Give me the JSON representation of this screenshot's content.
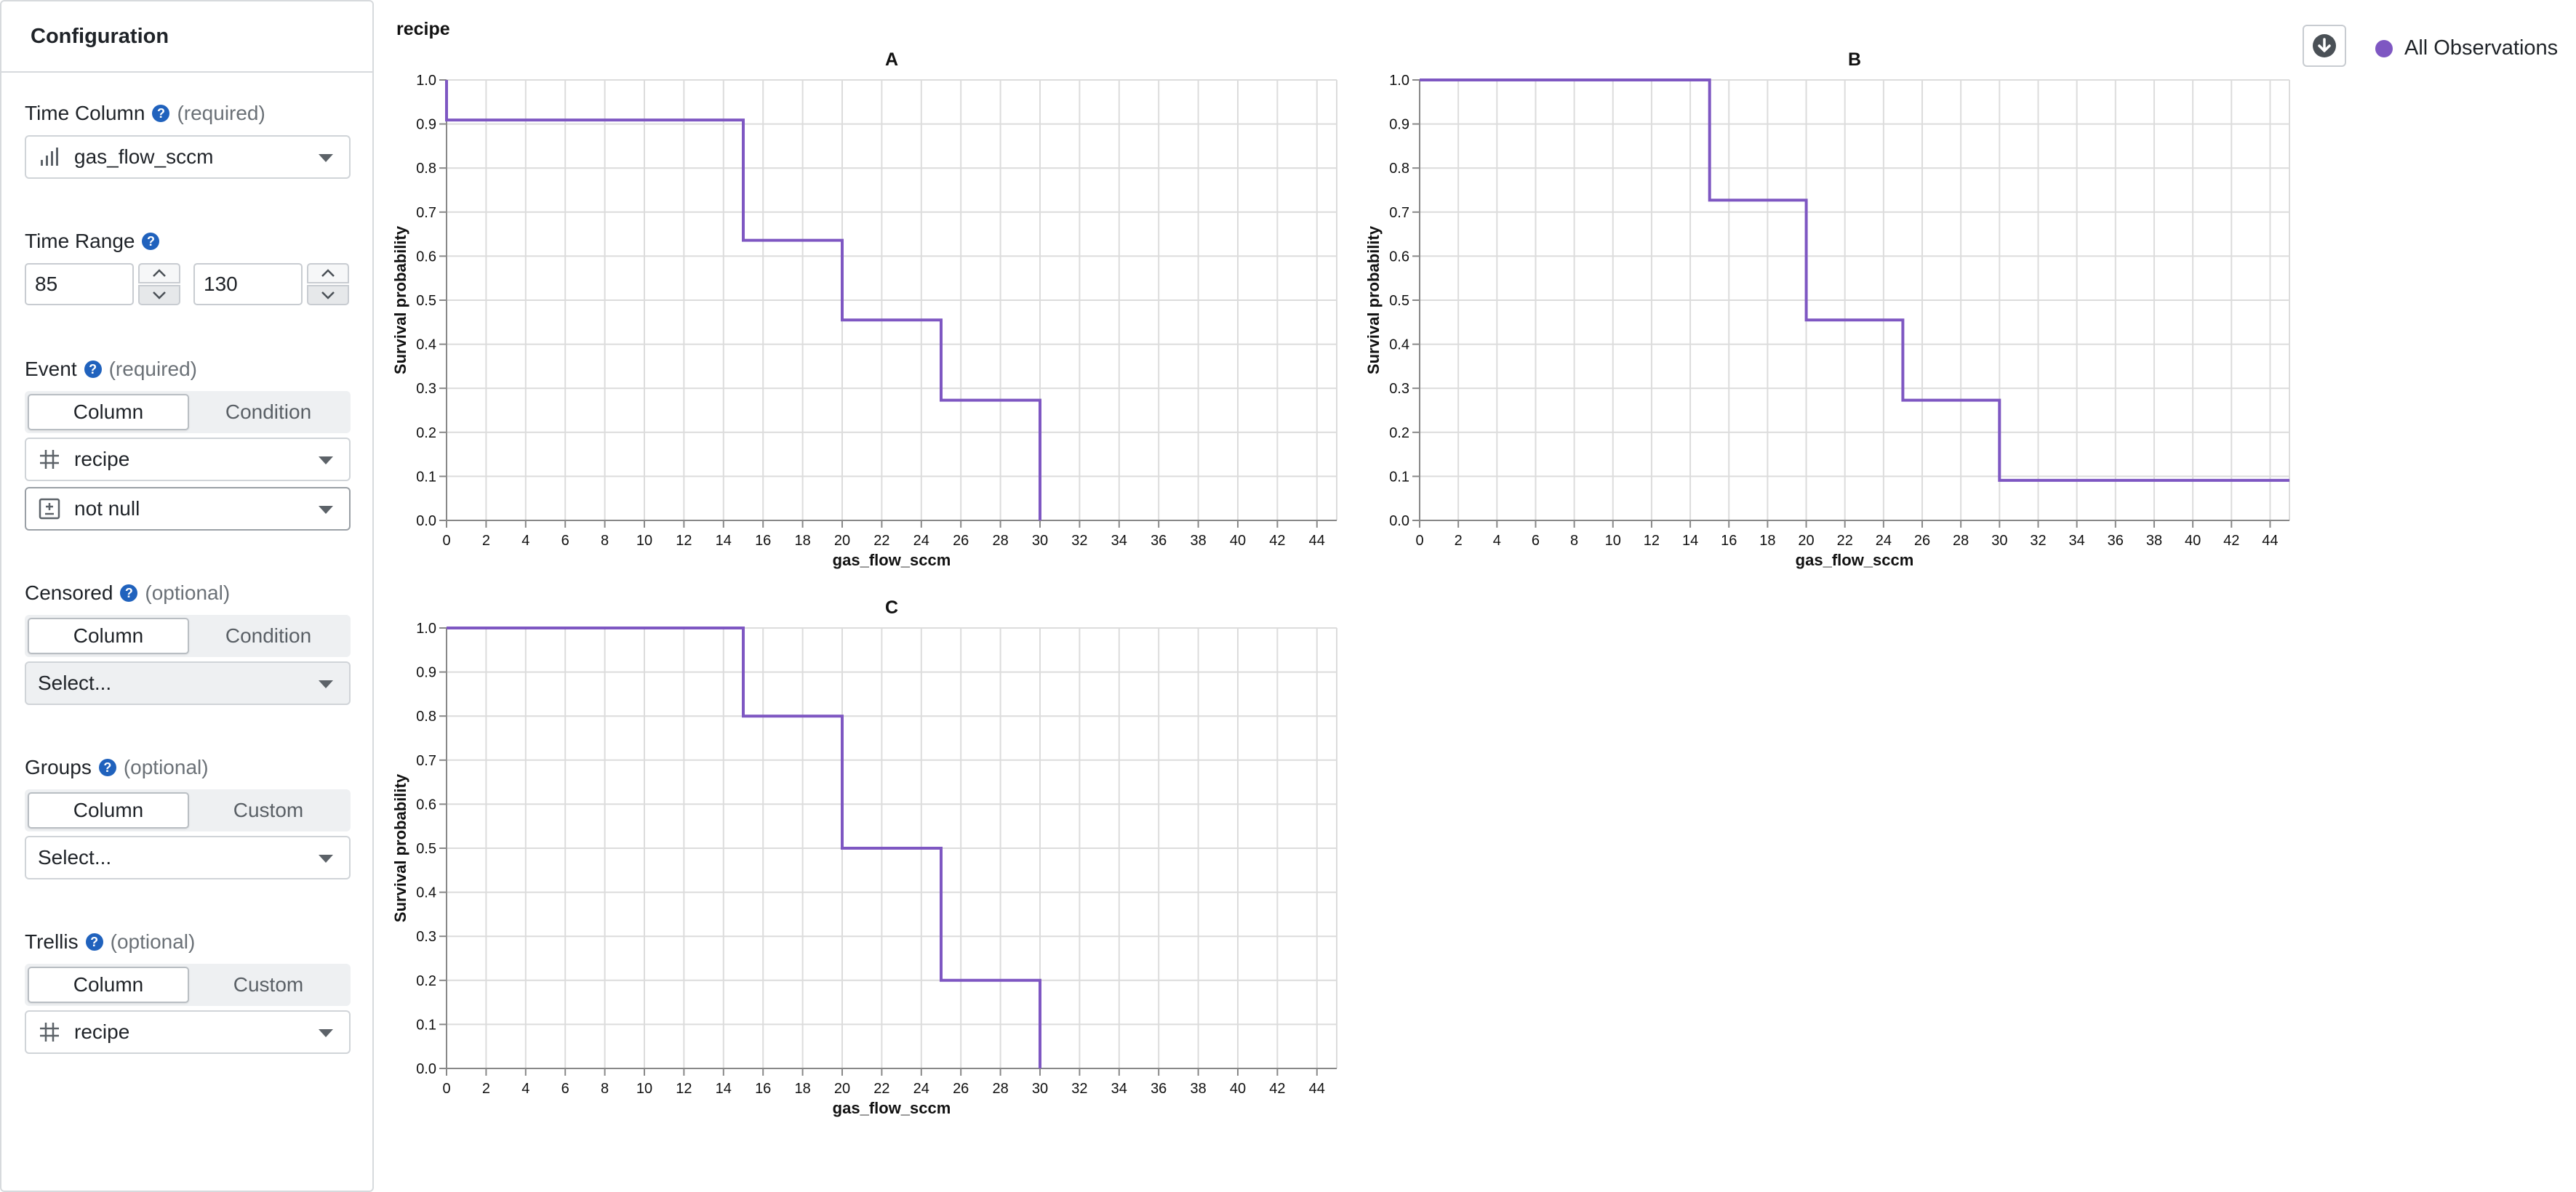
{
  "sidebar": {
    "title": "Configuration",
    "time_column": {
      "label": "Time Column",
      "qualifier": "(required)",
      "value": "gas_flow_sccm",
      "icon": "numeric-column-icon"
    },
    "time_range": {
      "label": "Time Range",
      "min": "85",
      "max": "130"
    },
    "event": {
      "label": "Event",
      "qualifier": "(required)",
      "tabs": [
        "Column",
        "Condition"
      ],
      "active_tab": "Column",
      "column_value": "recipe",
      "column_icon": "categorical-column-icon",
      "condition_value": "not null",
      "condition_icon": "not-null-icon"
    },
    "censored": {
      "label": "Censored",
      "qualifier": "(optional)",
      "tabs": [
        "Column",
        "Condition"
      ],
      "active_tab": "Column",
      "placeholder": "Select..."
    },
    "groups": {
      "label": "Groups",
      "qualifier": "(optional)",
      "tabs": [
        "Column",
        "Custom"
      ],
      "active_tab": "Column",
      "placeholder": "Select..."
    },
    "trellis": {
      "label": "Trellis",
      "qualifier": "(optional)",
      "tabs": [
        "Column",
        "Custom"
      ],
      "active_tab": "Column",
      "value": "recipe",
      "icon": "categorical-column-icon"
    }
  },
  "main": {
    "title": "recipe",
    "download_icon": "download-icon",
    "legend": [
      {
        "label": "All Observations",
        "color": "#7e57c2"
      }
    ]
  },
  "chart_data": [
    {
      "type": "line",
      "step": true,
      "title": "A",
      "xlabel": "gas_flow_sccm",
      "ylabel": "Survival probability",
      "xticks": [
        0,
        2,
        4,
        6,
        8,
        10,
        12,
        14,
        16,
        18,
        20,
        22,
        24,
        26,
        28,
        30,
        32,
        34,
        36,
        38,
        40,
        42,
        44
      ],
      "yticks": [
        0.0,
        0.1,
        0.2,
        0.3,
        0.4,
        0.5,
        0.6,
        0.7,
        0.8,
        0.9,
        1.0
      ],
      "xlim": [
        0,
        45
      ],
      "ylim": [
        0,
        1
      ],
      "grid": true,
      "series": [
        {
          "name": "All Observations",
          "color": "#7e57c2",
          "x": [
            0,
            0,
            15,
            15,
            20,
            20,
            25,
            25,
            30,
            30
          ],
          "y": [
            1.0,
            0.909,
            0.909,
            0.636,
            0.636,
            0.455,
            0.455,
            0.273,
            0.273,
            0.0
          ]
        }
      ]
    },
    {
      "type": "line",
      "step": true,
      "title": "B",
      "xlabel": "gas_flow_sccm",
      "ylabel": "Survival probability",
      "xticks": [
        0,
        2,
        4,
        6,
        8,
        10,
        12,
        14,
        16,
        18,
        20,
        22,
        24,
        26,
        28,
        30,
        32,
        34,
        36,
        38,
        40,
        42,
        44
      ],
      "yticks": [
        0.0,
        0.1,
        0.2,
        0.3,
        0.4,
        0.5,
        0.6,
        0.7,
        0.8,
        0.9,
        1.0
      ],
      "xlim": [
        0,
        45
      ],
      "ylim": [
        0,
        1
      ],
      "grid": true,
      "series": [
        {
          "name": "All Observations",
          "color": "#7e57c2",
          "x": [
            0,
            15,
            15,
            20,
            20,
            25,
            25,
            30,
            30,
            45
          ],
          "y": [
            1.0,
            1.0,
            0.727,
            0.727,
            0.455,
            0.455,
            0.273,
            0.273,
            0.091,
            0.091
          ]
        }
      ]
    },
    {
      "type": "line",
      "step": true,
      "title": "C",
      "xlabel": "gas_flow_sccm",
      "ylabel": "Survival probability",
      "xticks": [
        0,
        2,
        4,
        6,
        8,
        10,
        12,
        14,
        16,
        18,
        20,
        22,
        24,
        26,
        28,
        30,
        32,
        34,
        36,
        38,
        40,
        42,
        44
      ],
      "yticks": [
        0.0,
        0.1,
        0.2,
        0.3,
        0.4,
        0.5,
        0.6,
        0.7,
        0.8,
        0.9,
        1.0
      ],
      "xlim": [
        0,
        45
      ],
      "ylim": [
        0,
        1
      ],
      "grid": true,
      "series": [
        {
          "name": "All Observations",
          "color": "#7e57c2",
          "x": [
            0,
            15,
            15,
            20,
            20,
            25,
            25,
            30,
            30
          ],
          "y": [
            1.0,
            1.0,
            0.8,
            0.8,
            0.5,
            0.5,
            0.2,
            0.2,
            0.0
          ]
        }
      ]
    }
  ]
}
